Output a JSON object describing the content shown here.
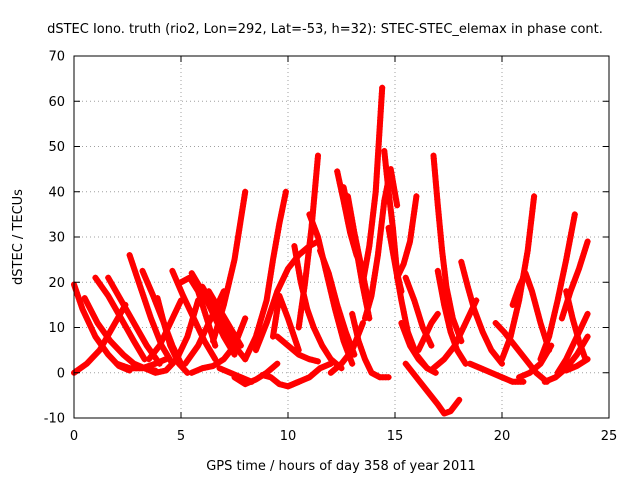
{
  "chart_data": {
    "type": "line",
    "title": "dSTEC Iono. truth (rio2, Lon=292, Lat=-53, h=32): STEC-STEC_elemax in phase cont.",
    "xlabel": "GPS time / hours of day 358 of year 2011",
    "ylabel": "dSTEC  / TECUs",
    "xlim": [
      0,
      25
    ],
    "ylim": [
      -10,
      70
    ],
    "xticks": [
      0,
      5,
      10,
      15,
      20,
      25
    ],
    "yticks": [
      -10,
      0,
      10,
      20,
      30,
      40,
      50,
      60,
      70
    ],
    "grid": true,
    "marker": "+",
    "color": "#ff0000",
    "arcs": [
      {
        "x": [
          0.0,
          0.4,
          1.0,
          1.6,
          2.1,
          2.6
        ],
        "y": [
          19.5,
          14,
          8,
          4,
          1.5,
          0.5
        ]
      },
      {
        "x": [
          0.0,
          0.6,
          1.2,
          1.8,
          2.4
        ],
        "y": [
          0,
          2,
          5,
          10,
          15
        ]
      },
      {
        "x": [
          0.5,
          1.1,
          1.7,
          2.3,
          2.8,
          3.3,
          3.8
        ],
        "y": [
          16.5,
          11,
          7,
          4,
          2,
          1,
          0.5
        ]
      },
      {
        "x": [
          1.0,
          1.6,
          2.2,
          2.8,
          3.3
        ],
        "y": [
          21,
          17,
          12,
          7,
          3
        ]
      },
      {
        "x": [
          1.6,
          2.2,
          2.8,
          3.4,
          4.0
        ],
        "y": [
          21,
          16,
          11,
          6,
          2
        ]
      },
      {
        "x": [
          2.0,
          2.6,
          3.2,
          3.8,
          4.3
        ],
        "y": [
          2,
          1,
          1,
          2,
          3
        ]
      },
      {
        "x": [
          2.6,
          3.1,
          3.6,
          4.1,
          4.6
        ],
        "y": [
          26,
          19,
          12,
          6,
          2
        ]
      },
      {
        "x": [
          3.2,
          3.7,
          4.2,
          4.6,
          5.0
        ],
        "y": [
          22.5,
          17,
          11,
          6,
          2
        ]
      },
      {
        "x": [
          3.3,
          3.8,
          4.3,
          4.8,
          5.3,
          5.8
        ],
        "y": [
          1,
          0,
          0.5,
          3,
          8,
          16
        ]
      },
      {
        "x": [
          3.5,
          4.0,
          4.5,
          5.0
        ],
        "y": [
          3,
          6,
          11,
          16
        ]
      },
      {
        "x": [
          3.9,
          4.2,
          4.5,
          4.9,
          5.3
        ],
        "y": [
          16.5,
          11,
          6,
          2,
          0
        ]
      },
      {
        "x": [
          4.6,
          5.1,
          5.6,
          6.1,
          6.6
        ],
        "y": [
          22.5,
          17,
          12,
          7,
          3
        ]
      },
      {
        "x": [
          5.0,
          5.4,
          5.8,
          6.2,
          6.6
        ],
        "y": [
          20,
          21,
          18,
          12,
          6
        ]
      },
      {
        "x": [
          5.2,
          5.8,
          6.4,
          7.0
        ],
        "y": [
          2,
          6,
          12,
          18
        ]
      },
      {
        "x": [
          5.5,
          6.0,
          6.5,
          7.0,
          7.5
        ],
        "y": [
          22,
          18,
          13,
          8,
          4
        ]
      },
      {
        "x": [
          6.0,
          6.5,
          7.0,
          7.5,
          8.0
        ],
        "y": [
          19,
          15,
          10,
          6,
          3
        ]
      },
      {
        "x": [
          6.3,
          6.8,
          7.3,
          7.8
        ],
        "y": [
          18,
          14,
          10,
          6
        ]
      },
      {
        "x": [
          5.5,
          6.0,
          6.5,
          7.0,
          7.5,
          8.0
        ],
        "y": [
          0,
          1,
          1.5,
          3,
          6,
          12
        ]
      },
      {
        "x": [
          6.8,
          7.3,
          7.8,
          8.3
        ],
        "y": [
          1,
          0,
          -1,
          -2
        ]
      },
      {
        "x": [
          6.5,
          7.0,
          7.5,
          8.0
        ],
        "y": [
          7,
          15,
          25,
          40
        ]
      },
      {
        "x": [
          7.5,
          8.0,
          8.5,
          9.0,
          9.5
        ],
        "y": [
          -1,
          -2.5,
          -1.5,
          0,
          2
        ]
      },
      {
        "x": [
          8.0,
          8.5,
          9.0,
          9.3,
          9.6,
          9.9
        ],
        "y": [
          3,
          8,
          16,
          25,
          33,
          40
        ]
      },
      {
        "x": [
          8.8,
          9.2,
          9.6,
          10.0,
          10.5
        ],
        "y": [
          -0.5,
          -1,
          -2.5,
          -3,
          -2
        ]
      },
      {
        "x": [
          9.3,
          9.6,
          10.0,
          10.5
        ],
        "y": [
          8,
          17,
          12,
          5
        ]
      },
      {
        "x": [
          8.5,
          9.0,
          9.5,
          10.0,
          10.5,
          11.0,
          11.4
        ],
        "y": [
          5,
          11,
          18,
          23,
          26,
          28,
          29
        ]
      },
      {
        "x": [
          9.5,
          10.0,
          10.5,
          11.0,
          11.4
        ],
        "y": [
          8,
          6,
          4,
          3,
          2.5
        ]
      },
      {
        "x": [
          10.0,
          10.5,
          11.0,
          11.5,
          12.0
        ],
        "y": [
          -3,
          -2,
          -1,
          1,
          2
        ]
      },
      {
        "x": [
          10.5,
          10.8,
          11.1,
          11.4
        ],
        "y": [
          10,
          20,
          32,
          48
        ]
      },
      {
        "x": [
          10.3,
          10.6,
          10.9,
          11.2,
          11.6,
          12.0,
          12.5
        ],
        "y": [
          28,
          20,
          14,
          10,
          6,
          3,
          1
        ]
      },
      {
        "x": [
          11.0,
          11.4,
          11.8,
          12.2,
          12.6,
          13.0
        ],
        "y": [
          35,
          30,
          22,
          14,
          7,
          2
        ]
      },
      {
        "x": [
          11.5,
          11.9,
          12.3,
          12.7,
          13.1
        ],
        "y": [
          27,
          22,
          15,
          9,
          4
        ]
      },
      {
        "x": [
          12.0,
          12.5,
          13.0,
          13.5
        ],
        "y": [
          0,
          2,
          5,
          11
        ]
      },
      {
        "x": [
          12.3,
          12.6,
          12.9,
          13.2,
          13.5
        ],
        "y": [
          44.5,
          38,
          31,
          26,
          23
        ]
      },
      {
        "x": [
          12.6,
          12.9,
          13.2,
          13.5,
          13.8
        ],
        "y": [
          41,
          34,
          27,
          19,
          12
        ]
      },
      {
        "x": [
          12.8,
          13.1,
          13.4,
          13.7
        ],
        "y": [
          39,
          31,
          24,
          17
        ]
      },
      {
        "x": [
          13.0,
          13.3,
          13.6,
          13.9,
          14.3,
          14.7
        ],
        "y": [
          13,
          7,
          3,
          0,
          -1,
          -1
        ]
      },
      {
        "x": [
          13.5,
          13.8,
          14.1,
          14.4
        ],
        "y": [
          20,
          28,
          40,
          63
        ]
      },
      {
        "x": [
          13.6,
          13.9,
          14.2,
          14.5,
          14.8,
          15.1
        ],
        "y": [
          12,
          17,
          26,
          38,
          45,
          37
        ]
      },
      {
        "x": [
          14.5,
          14.7,
          14.9,
          15.1,
          15.3
        ],
        "y": [
          49,
          40,
          32,
          22,
          18
        ]
      },
      {
        "x": [
          14.7,
          15.0,
          15.3,
          15.6,
          16.0,
          16.5
        ],
        "y": [
          32,
          24,
          16,
          9,
          4,
          1
        ]
      },
      {
        "x": [
          15.1,
          15.4,
          15.7,
          16.0
        ],
        "y": [
          21,
          24,
          29,
          39
        ]
      },
      {
        "x": [
          15.3,
          15.7,
          16.1,
          16.5,
          16.9
        ],
        "y": [
          11,
          6,
          3,
          1,
          0
        ]
      },
      {
        "x": [
          15.5,
          15.9,
          16.3,
          16.7
        ],
        "y": [
          21,
          16,
          10,
          6
        ]
      },
      {
        "x": [
          16.1,
          16.4,
          16.7,
          17.0
        ],
        "y": [
          5,
          8,
          11,
          13
        ]
      },
      {
        "x": [
          16.8,
          17.0,
          17.2,
          17.4,
          17.7,
          18.1
        ],
        "y": [
          48,
          37,
          27,
          19,
          12,
          7
        ]
      },
      {
        "x": [
          17.0,
          17.3,
          17.6,
          17.9,
          18.3
        ],
        "y": [
          22.5,
          15,
          9,
          5,
          2
        ]
      },
      {
        "x": [
          15.5,
          16.0,
          16.5,
          17.0,
          17.3,
          17.6,
          18.0
        ],
        "y": [
          2,
          -1,
          -4,
          -7,
          -9,
          -8.5,
          -6
        ]
      },
      {
        "x": [
          16.8,
          17.3,
          17.8,
          18.3,
          18.8
        ],
        "y": [
          1,
          3,
          6,
          11,
          16
        ]
      },
      {
        "x": [
          18.1,
          18.4,
          18.7,
          19.1,
          19.5,
          20.0
        ],
        "y": [
          24.5,
          19,
          14,
          9,
          5,
          2
        ]
      },
      {
        "x": [
          18.5,
          19.0,
          19.5,
          20.0,
          20.5,
          21.0
        ],
        "y": [
          2,
          1,
          0,
          -1,
          -2,
          -2
        ]
      },
      {
        "x": [
          19.7,
          20.1,
          20.6,
          21.1,
          21.6,
          22.1
        ],
        "y": [
          11,
          9,
          6,
          3,
          0,
          -2
        ]
      },
      {
        "x": [
          20.0,
          20.4,
          20.8,
          21.2,
          21.5
        ],
        "y": [
          3,
          8,
          16,
          27,
          39
        ]
      },
      {
        "x": [
          20.5,
          20.8,
          21.1,
          21.4,
          21.8,
          22.2
        ],
        "y": [
          15,
          19,
          22,
          18,
          11,
          5
        ]
      },
      {
        "x": [
          20.8,
          21.3,
          21.8,
          22.3
        ],
        "y": [
          -1,
          0,
          2,
          6
        ]
      },
      {
        "x": [
          21.8,
          22.2,
          22.6,
          23.0,
          23.4
        ],
        "y": [
          3,
          8,
          16,
          25,
          35
        ]
      },
      {
        "x": [
          22.0,
          22.5,
          23.0,
          23.5,
          24.0
        ],
        "y": [
          -2,
          -1,
          1,
          4,
          8
        ]
      },
      {
        "x": [
          22.6,
          23.0,
          23.5,
          24.0
        ],
        "y": [
          0,
          3,
          8,
          13
        ]
      },
      {
        "x": [
          22.8,
          23.2,
          23.6,
          24.0
        ],
        "y": [
          12,
          18,
          23,
          29
        ]
      },
      {
        "x": [
          23.0,
          23.3,
          23.6,
          23.9
        ],
        "y": [
          18,
          12,
          7,
          3
        ]
      },
      {
        "x": [
          23.0,
          23.5,
          24.0
        ],
        "y": [
          0.5,
          1.5,
          3
        ]
      }
    ]
  }
}
